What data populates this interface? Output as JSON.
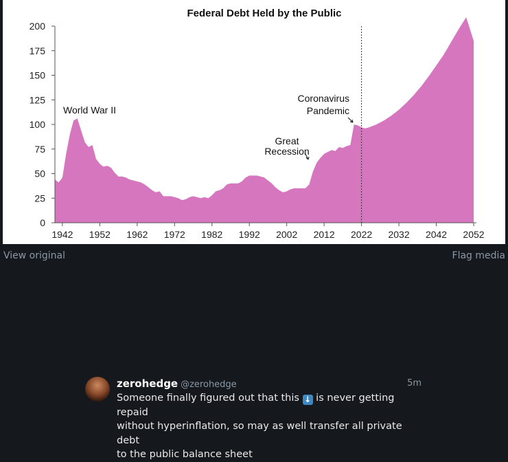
{
  "media": {
    "view_original_label": "View original",
    "flag_media_label": "Flag media"
  },
  "chart_data": {
    "type": "area",
    "title": "Federal Debt Held by the Public",
    "xlabel": "",
    "ylabel": "",
    "xlim": [
      1940,
      2052
    ],
    "ylim": [
      0,
      200
    ],
    "x_ticks": [
      1942,
      1952,
      1962,
      1972,
      1982,
      1992,
      2002,
      2012,
      2022,
      2032,
      2042,
      2052
    ],
    "y_ticks": [
      0,
      25,
      50,
      75,
      100,
      125,
      150,
      175,
      200
    ],
    "projection_start": 2022,
    "fill_color": "#d576be",
    "series": [
      {
        "x": [
          1940,
          1941,
          1942,
          1943,
          1944,
          1945,
          1946,
          1947,
          1948,
          1949,
          1950,
          1951,
          1952,
          1953,
          1954,
          1955,
          1956,
          1957,
          1958,
          1959,
          1960,
          1961,
          1962,
          1963,
          1964,
          1965,
          1966,
          1967,
          1968,
          1969,
          1970,
          1971,
          1972,
          1973,
          1974,
          1975,
          1976,
          1977,
          1978,
          1979,
          1980,
          1981,
          1982,
          1983,
          1984,
          1985,
          1986,
          1987,
          1988,
          1989,
          1990,
          1991,
          1992,
          1993,
          1994,
          1995,
          1996,
          1997,
          1998,
          1999,
          2000,
          2001,
          2002,
          2003,
          2004,
          2005,
          2006,
          2007,
          2008,
          2009,
          2010,
          2011,
          2012,
          2013,
          2014,
          2015,
          2016,
          2017,
          2018,
          2019,
          2020,
          2021,
          2022,
          2023,
          2024,
          2026,
          2028,
          2030,
          2032,
          2034,
          2036,
          2038,
          2040,
          2042,
          2044,
          2046,
          2048,
          2050,
          2052
        ],
        "values": [
          44,
          41,
          46,
          70,
          90,
          104,
          106,
          94,
          82,
          77,
          79,
          65,
          60,
          57,
          58,
          56,
          51,
          47,
          47,
          46,
          44,
          43,
          42,
          41,
          39,
          36,
          33,
          31,
          32,
          27,
          27,
          27,
          26,
          25,
          23,
          24,
          26,
          27,
          26,
          25,
          26,
          25,
          28,
          32,
          33,
          35,
          39,
          40,
          40,
          40,
          42,
          46,
          48,
          48,
          48,
          47,
          46,
          43,
          40,
          36,
          33,
          31,
          32,
          34,
          35,
          35,
          35,
          35,
          39,
          52,
          61,
          66,
          70,
          72,
          74,
          73,
          77,
          76,
          78,
          79,
          100,
          99,
          97,
          96,
          97,
          100,
          104,
          109,
          115,
          122,
          130,
          139,
          149,
          160,
          171,
          184,
          197,
          209,
          185
        ]
      }
    ],
    "annotations": [
      {
        "lines": [
          "World War II"
        ]
      },
      {
        "lines": [
          "Great",
          "Recession"
        ]
      },
      {
        "lines": [
          "Coronavirus",
          "Pandemic"
        ]
      }
    ]
  },
  "post": {
    "author_name": "zerohedge",
    "author_handle": "@zerohedge",
    "time": "5m",
    "text_line1_a": "Someone finally figured out that this ",
    "text_line1_b": " is never getting repaid",
    "text_line2": "without hyperinflation, so may as well transfer all private debt",
    "text_line3": "to the public balance sheet"
  }
}
